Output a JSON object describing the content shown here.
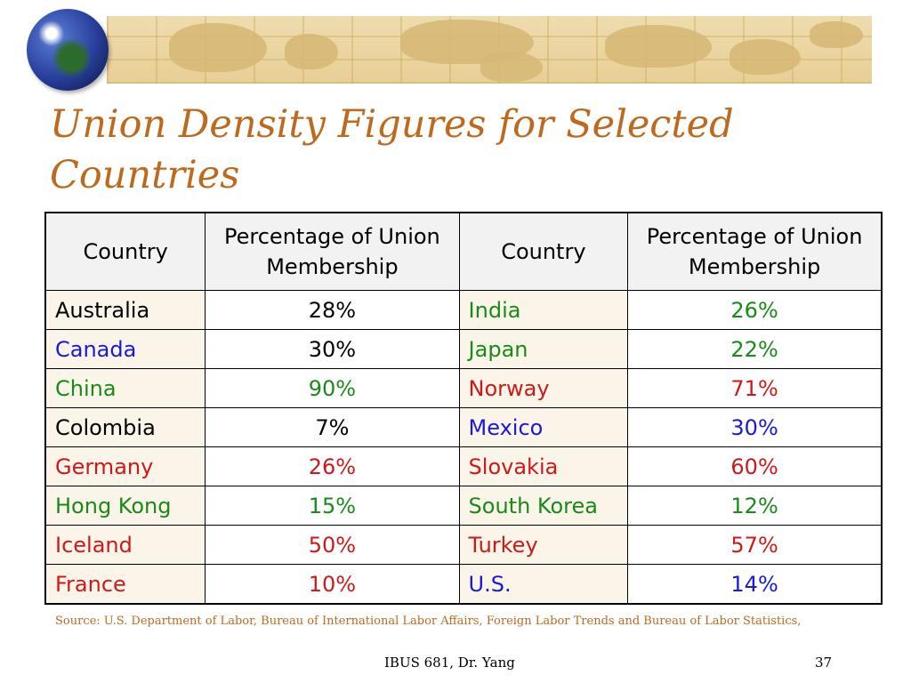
{
  "slide": {
    "title": "Union Density Figures for Selected Countries",
    "source": "Source: U.S. Department of Labor, Bureau of International Labor Affairs, Foreign Labor Trends and Bureau of Labor Statistics,",
    "footer": "IBUS 681, Dr. Yang",
    "page_number": "37"
  },
  "colors": {
    "title": "#bd6a1f",
    "black": "#000000",
    "green": "#1a8a1a",
    "blue": "#1a1ad6",
    "red": "#cc1a1a"
  },
  "table": {
    "headers": [
      "Country",
      "Percentage of Union Membership",
      "Country",
      "Percentage of Union Membership"
    ],
    "rows": [
      {
        "left_country": "Australia",
        "left_value": "28%",
        "left_country_color": "black",
        "left_value_color": "black",
        "right_country": "India",
        "right_value": "26%",
        "right_color": "green"
      },
      {
        "left_country": "Canada",
        "left_value": "30%",
        "left_country_color": "blue",
        "left_value_color": "black",
        "right_country": "Japan",
        "right_value": "22%",
        "right_color": "green"
      },
      {
        "left_country": "China",
        "left_value": "90%",
        "left_country_color": "green",
        "left_value_color": "green",
        "right_country": "Norway",
        "right_value": "71%",
        "right_color": "red"
      },
      {
        "left_country": "Colombia",
        "left_value": "7%",
        "left_country_color": "black",
        "left_value_color": "black",
        "right_country": "Mexico",
        "right_value": "30%",
        "right_color": "blue"
      },
      {
        "left_country": "Germany",
        "left_value": "26%",
        "left_country_color": "red",
        "left_value_color": "red",
        "right_country": "Slovakia",
        "right_value": "60%",
        "right_color": "red"
      },
      {
        "left_country": "Hong Kong",
        "left_value": "15%",
        "left_country_color": "green",
        "left_value_color": "green",
        "right_country": "South Korea",
        "right_value": "12%",
        "right_color": "green"
      },
      {
        "left_country": "Iceland",
        "left_value": "50%",
        "left_country_color": "red",
        "left_value_color": "red",
        "right_country": "Turkey",
        "right_value": "57%",
        "right_color": "red"
      },
      {
        "left_country": "France",
        "left_value": "10%",
        "left_country_color": "red",
        "left_value_color": "red",
        "right_country": "U.S.",
        "right_value": "14%",
        "right_color": "blue"
      }
    ]
  }
}
